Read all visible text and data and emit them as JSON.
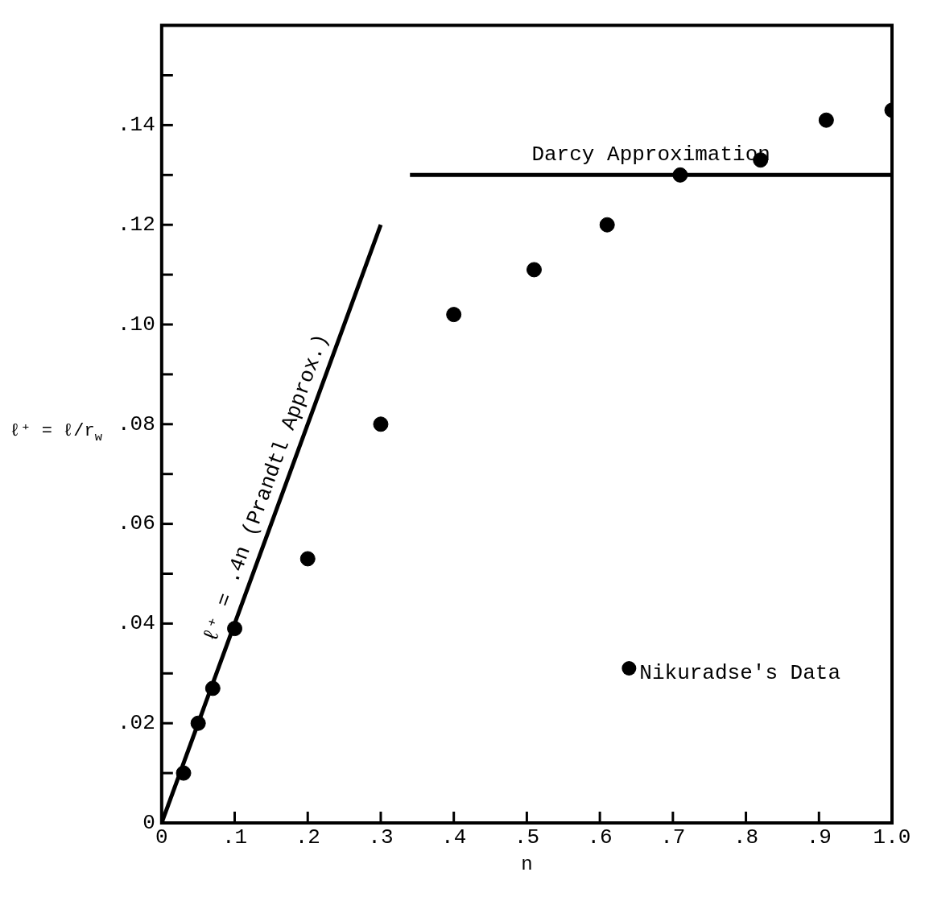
{
  "chart_data": {
    "type": "scatter",
    "xlabel": "n",
    "ylabel": "ℓ⁺ = ℓ/r$_{w}$",
    "xlim": [
      0,
      1.0
    ],
    "ylim": [
      0,
      0.16
    ],
    "xticks": [
      0,
      {
        "value": 0.1,
        "label": ".1"
      },
      {
        "value": 0.2,
        "label": ".2"
      },
      {
        "value": 0.3,
        "label": ".3"
      },
      {
        "value": 0.4,
        "label": ".4"
      },
      {
        "value": 0.5,
        "label": ".5"
      },
      {
        "value": 0.6,
        "label": ".6"
      },
      {
        "value": 0.7,
        "label": ".7"
      },
      {
        "value": 0.8,
        "label": ".8"
      },
      {
        "value": 0.9,
        "label": ".9"
      },
      {
        "value": 1.0,
        "label": "1.0"
      }
    ],
    "yticks": [
      0,
      {
        "value": 0.01,
        "label": null
      },
      {
        "value": 0.02,
        "label": ".02"
      },
      {
        "value": 0.03,
        "label": null
      },
      {
        "value": 0.04,
        "label": ".04"
      },
      {
        "value": 0.05,
        "label": null
      },
      {
        "value": 0.06,
        "label": ".06"
      },
      {
        "value": 0.07,
        "label": null
      },
      {
        "value": 0.08,
        "label": ".08"
      },
      {
        "value": 0.09,
        "label": null
      },
      {
        "value": 0.1,
        "label": ".10"
      },
      {
        "value": 0.11,
        "label": null
      },
      {
        "value": 0.12,
        "label": ".12"
      },
      {
        "value": 0.13,
        "label": null
      },
      {
        "value": 0.14,
        "label": ".14"
      },
      {
        "value": 0.15,
        "label": null
      }
    ],
    "grid": false,
    "legend": "bottom right",
    "series": [
      {
        "name": "Nikuradse's Data",
        "type": "scatter",
        "marker": "circle",
        "color": "#000000",
        "x": [
          0.03,
          0.05,
          0.07,
          0.1,
          0.2,
          0.3,
          0.4,
          0.51,
          0.61,
          0.71,
          0.82,
          0.91,
          1.0
        ],
        "values": [
          0.01,
          0.02,
          0.027,
          0.039,
          0.053,
          0.08,
          0.102,
          0.111,
          0.12,
          0.13,
          0.133,
          0.141,
          0.143
        ]
      },
      {
        "name": "ℓ⁺ = .4n (Prandtl Approx.)",
        "type": "line",
        "marker": "none",
        "color": "#000000",
        "x": [
          0,
          0.3
        ],
        "values": [
          0,
          0.12
        ]
      },
      {
        "name": "Darcy Approximation",
        "type": "line",
        "marker": "none",
        "color": "#000000",
        "x": [
          0.34,
          1.0
        ],
        "values": [
          0.13,
          0.13
        ]
      }
    ]
  }
}
